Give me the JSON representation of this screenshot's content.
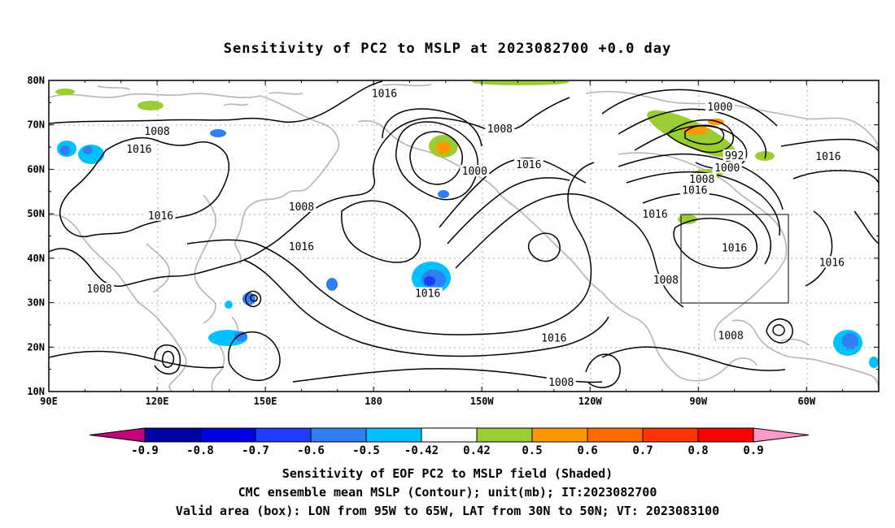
{
  "title": "Sensitivity of PC2 to MSLP at 2023082700 +0.0 day",
  "map": {
    "lat_labels": [
      "80N",
      "70N",
      "60N",
      "50N",
      "40N",
      "30N",
      "20N",
      "10N"
    ],
    "lon_labels": [
      "90E",
      "120E",
      "150E",
      "180",
      "150W",
      "120W",
      "90W",
      "60W"
    ],
    "contour_labels": [
      {
        "text": "1016",
        "lon": 183,
        "lat": 77
      },
      {
        "text": "1008",
        "lon": 120,
        "lat": 68.5
      },
      {
        "text": "1016",
        "lon": 115,
        "lat": 64.5
      },
      {
        "text": "1008",
        "lon": 160,
        "lat": 51.5
      },
      {
        "text": "1016",
        "lon": 121,
        "lat": 49.5
      },
      {
        "text": "1016",
        "lon": 160,
        "lat": 42.5
      },
      {
        "text": "1008",
        "lon": 104,
        "lat": 33
      },
      {
        "text": "1008",
        "lon": 215,
        "lat": 69
      },
      {
        "text": "1000",
        "lon": 208,
        "lat": 59.5
      },
      {
        "text": "1016",
        "lon": 223,
        "lat": 61
      },
      {
        "text": "1016",
        "lon": 195,
        "lat": 32
      },
      {
        "text": "1016",
        "lon": 230,
        "lat": 22
      },
      {
        "text": "1008",
        "lon": 232,
        "lat": 12
      },
      {
        "text": "1016",
        "lon": 258,
        "lat": 49.8
      },
      {
        "text": "1008",
        "lon": 261,
        "lat": 35
      },
      {
        "text": "1000",
        "lon": 276,
        "lat": 74
      },
      {
        "text": "992",
        "lon": 280,
        "lat": 63
      },
      {
        "text": "1000",
        "lon": 278,
        "lat": 60.3
      },
      {
        "text": "1008",
        "lon": 271,
        "lat": 57.7
      },
      {
        "text": "1016",
        "lon": 269,
        "lat": 55.2
      },
      {
        "text": "1016",
        "lon": 306,
        "lat": 62.8
      },
      {
        "text": "1016",
        "lon": 280,
        "lat": 42.3
      },
      {
        "text": "1016",
        "lon": 307,
        "lat": 39
      },
      {
        "text": "1008",
        "lon": 279,
        "lat": 22.5
      }
    ]
  },
  "colorbar": {
    "labels": [
      "-0.9",
      "-0.8",
      "-0.7",
      "-0.6",
      "-0.5",
      "-0.42",
      "0.42",
      "0.5",
      "0.6",
      "0.7",
      "0.8",
      "0.9"
    ],
    "colors": [
      "#c2007a",
      "#0000a8",
      "#0000e0",
      "#1e3cff",
      "#2f7ff2",
      "#00c0ff",
      "#ffffff",
      "#9acd32",
      "#ff9800",
      "#ff6a00",
      "#ff3300",
      "#ff0000",
      "#ff99c8"
    ]
  },
  "footer": {
    "line1": "Sensitivity of EOF PC2 to MSLP field (Shaded)",
    "line2": "CMC ensemble mean MSLP (Contour); unit(mb); IT:2023082700",
    "line3": "Valid area (box): LON from 95W to 65W, LAT from 30N to 50N; VT: 2023083100"
  }
}
